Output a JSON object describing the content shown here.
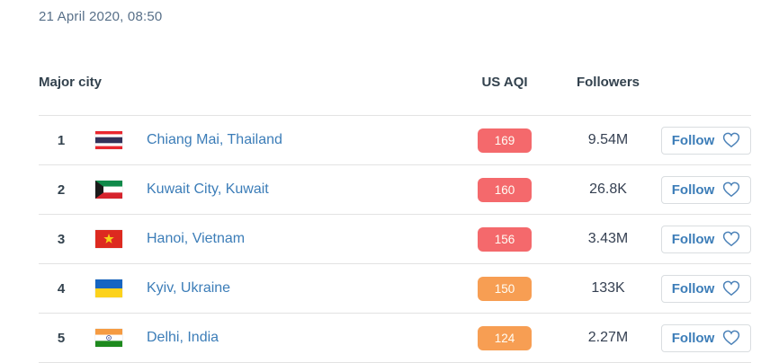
{
  "timestamp": "21 April 2020, 08:50",
  "colors": {
    "link_blue": "#3c7db8",
    "header_text": "#33424e",
    "divider": "#e3e3e3",
    "aqi_levels": {
      "red": "#f4696c",
      "orange": "#f79e53"
    }
  },
  "table": {
    "columns": {
      "city": "Major city",
      "aqi": "US AQI",
      "followers": "Followers"
    },
    "follow_label": "Follow",
    "rows": [
      {
        "rank": "1",
        "flag": "th",
        "flag_name": "thailand-flag-icon",
        "city": "Chiang Mai, Thailand",
        "aqi": "169",
        "aqi_level": "red",
        "followers": "9.54M"
      },
      {
        "rank": "2",
        "flag": "kw",
        "flag_name": "kuwait-flag-icon",
        "city": "Kuwait City, Kuwait",
        "aqi": "160",
        "aqi_level": "red",
        "followers": "26.8K"
      },
      {
        "rank": "3",
        "flag": "vn",
        "flag_name": "vietnam-flag-icon",
        "city": "Hanoi, Vietnam",
        "aqi": "156",
        "aqi_level": "red",
        "followers": "3.43M"
      },
      {
        "rank": "4",
        "flag": "ua",
        "flag_name": "ukraine-flag-icon",
        "city": "Kyiv, Ukraine",
        "aqi": "150",
        "aqi_level": "orange",
        "followers": "133K"
      },
      {
        "rank": "5",
        "flag": "in",
        "flag_name": "india-flag-icon",
        "city": "Delhi, India",
        "aqi": "124",
        "aqi_level": "orange",
        "followers": "2.27M"
      }
    ]
  }
}
